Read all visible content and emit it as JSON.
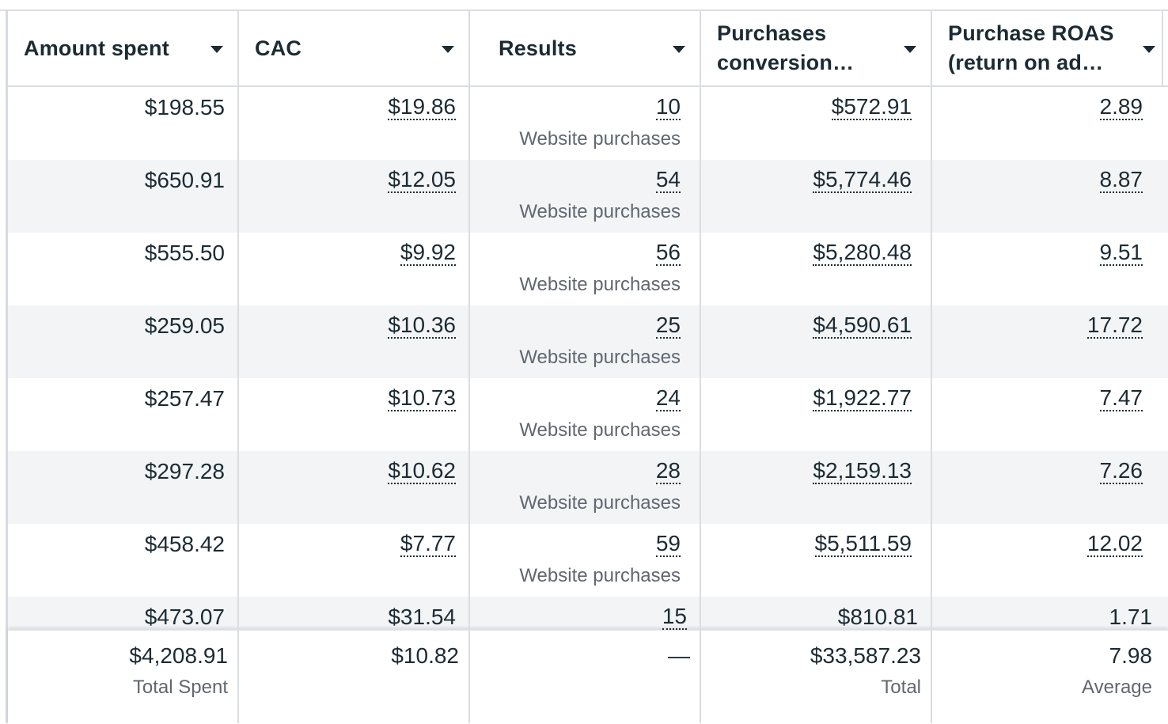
{
  "columns": [
    {
      "label": "Amount spent"
    },
    {
      "label": "CAC"
    },
    {
      "label": "Results"
    },
    {
      "label": "Purchases\nconversion…"
    },
    {
      "label": "Purchase ROAS\n(return on ad…"
    }
  ],
  "rows": [
    {
      "amount_spent": "$198.55",
      "cac": "$19.86",
      "results": "10",
      "results_type": "Website purchases",
      "conversion_value": "$572.91",
      "roas": "2.89"
    },
    {
      "amount_spent": "$650.91",
      "cac": "$12.05",
      "results": "54",
      "results_type": "Website purchases",
      "conversion_value": "$5,774.46",
      "roas": "8.87"
    },
    {
      "amount_spent": "$555.50",
      "cac": "$9.92",
      "results": "56",
      "results_type": "Website purchases",
      "conversion_value": "$5,280.48",
      "roas": "9.51"
    },
    {
      "amount_spent": "$259.05",
      "cac": "$10.36",
      "results": "25",
      "results_type": "Website purchases",
      "conversion_value": "$4,590.61",
      "roas": "17.72"
    },
    {
      "amount_spent": "$257.47",
      "cac": "$10.73",
      "results": "24",
      "results_type": "Website purchases",
      "conversion_value": "$1,922.77",
      "roas": "7.47"
    },
    {
      "amount_spent": "$297.28",
      "cac": "$10.62",
      "results": "28",
      "results_type": "Website purchases",
      "conversion_value": "$2,159.13",
      "roas": "7.26"
    },
    {
      "amount_spent": "$458.42",
      "cac": "$7.77",
      "results": "59",
      "results_type": "Website purchases",
      "conversion_value": "$5,511.59",
      "roas": "12.02"
    },
    {
      "amount_spent": "$473.07",
      "cac": "$31.54",
      "results": "15",
      "results_type": "",
      "conversion_value": "$810.81",
      "roas": "1.71"
    }
  ],
  "totals": {
    "amount_spent": "$4,208.91",
    "amount_spent_label": "Total Spent",
    "cac": "$10.82",
    "results": "—",
    "conversion_value": "$33,587.23",
    "conversion_value_label": "Total",
    "roas": "7.98",
    "roas_label": "Average"
  },
  "colors": {
    "text": "#1c2b33",
    "muted": "#606770",
    "row_alt": "#f2f4f6",
    "border": "#dadde1"
  },
  "icons": {
    "sort": "caret-down-icon"
  }
}
